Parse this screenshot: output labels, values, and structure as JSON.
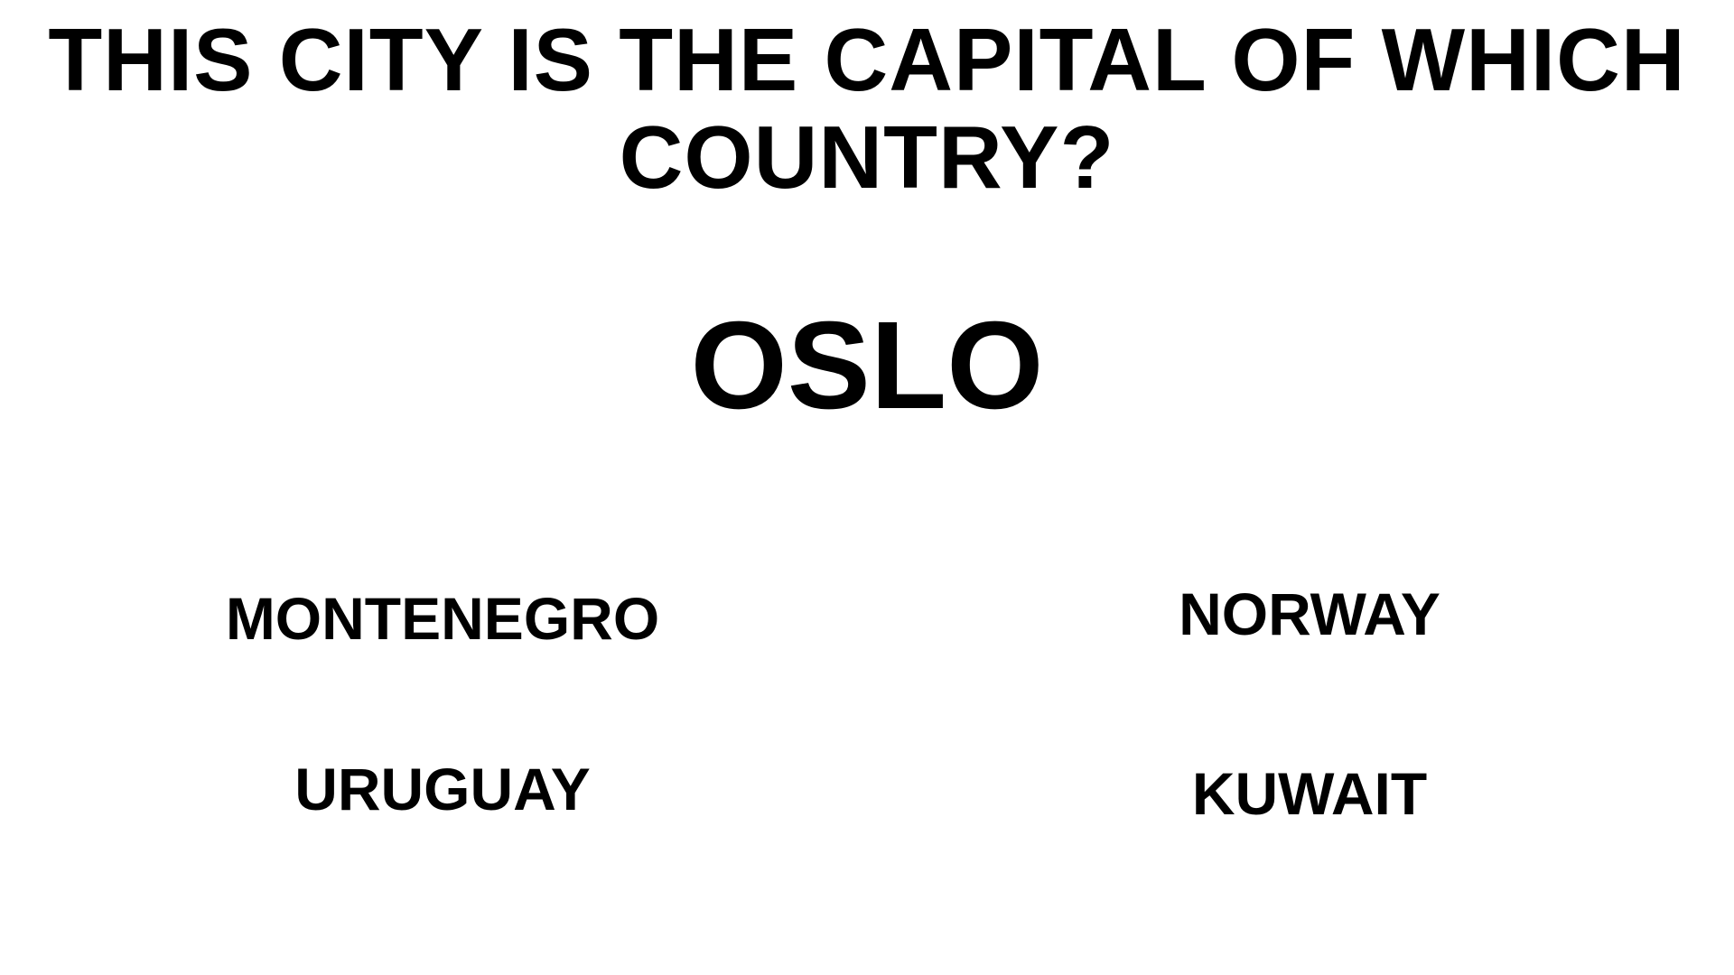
{
  "question": {
    "text": "THIS CITY IS THE CAPITAL OF WHICH COUNTRY?"
  },
  "city": {
    "name": "OSLO"
  },
  "answers": [
    {
      "label": "MONTENEGRO"
    },
    {
      "label": "NORWAY"
    },
    {
      "label": "URUGUAY"
    },
    {
      "label": "KUWAIT"
    }
  ],
  "colors": {
    "background": "#ffffff",
    "text": "#000000"
  }
}
